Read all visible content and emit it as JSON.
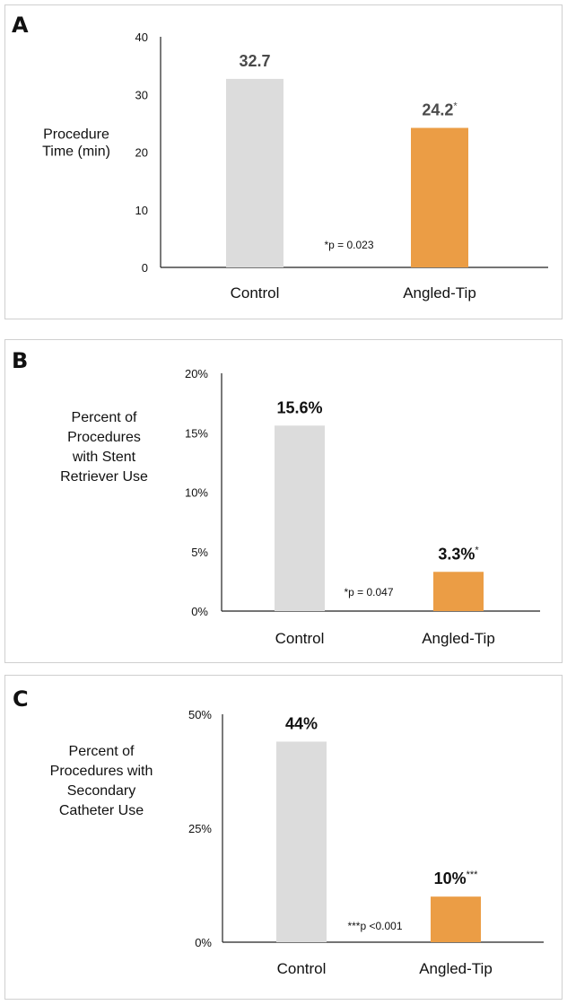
{
  "chart_data": [
    {
      "type": "bar",
      "panel_label": "A",
      "categories": [
        "Control",
        "Angled-Tip"
      ],
      "values": [
        32.7,
        24.2
      ],
      "value_labels": [
        "32.7",
        "24.2"
      ],
      "value_marks": [
        "",
        "*"
      ],
      "ylabel_lines": [
        "Procedure",
        "Time (min)"
      ],
      "ylim": [
        0,
        40
      ],
      "yticks": [
        0,
        10,
        20,
        30,
        40
      ],
      "ytick_labels": [
        "0",
        "10",
        "20",
        "30",
        "40"
      ],
      "annotation": "*p = 0.023",
      "colors": [
        "#dcdcdc",
        "#eb9d45"
      ],
      "value_label_colors": [
        "#4a4a4a",
        "#4a4a4a"
      ],
      "grid": false
    },
    {
      "type": "bar",
      "panel_label": "B",
      "categories": [
        "Control",
        "Angled-Tip"
      ],
      "values": [
        15.6,
        3.3
      ],
      "value_labels": [
        "15.6%",
        "3.3%"
      ],
      "value_marks": [
        "",
        "*"
      ],
      "ylabel_lines": [
        "Percent of",
        "Procedures",
        "with Stent",
        "Retriever Use"
      ],
      "ylim": [
        0,
        20
      ],
      "yticks": [
        0,
        5,
        10,
        15,
        20
      ],
      "ytick_labels": [
        "0%",
        "5%",
        "10%",
        "15%",
        "20%"
      ],
      "annotation": "*p = 0.047",
      "colors": [
        "#dcdcdc",
        "#eb9d45"
      ],
      "value_label_colors": [
        "#111111",
        "#111111"
      ],
      "grid": false
    },
    {
      "type": "bar",
      "panel_label": "C",
      "categories": [
        "Control",
        "Angled-Tip"
      ],
      "values": [
        44,
        10
      ],
      "value_labels": [
        "44%",
        "10%"
      ],
      "value_marks": [
        "",
        "***"
      ],
      "ylabel_lines": [
        "Percent of",
        "Procedures with",
        "Secondary",
        "Catheter Use"
      ],
      "ylim": [
        0,
        50
      ],
      "yticks": [
        0,
        25,
        50
      ],
      "ytick_labels": [
        "0%",
        "25%",
        "50%"
      ],
      "annotation": "***p <0.001",
      "colors": [
        "#dcdcdc",
        "#eb9d45"
      ],
      "value_label_colors": [
        "#111111",
        "#111111"
      ],
      "grid": false
    }
  ]
}
